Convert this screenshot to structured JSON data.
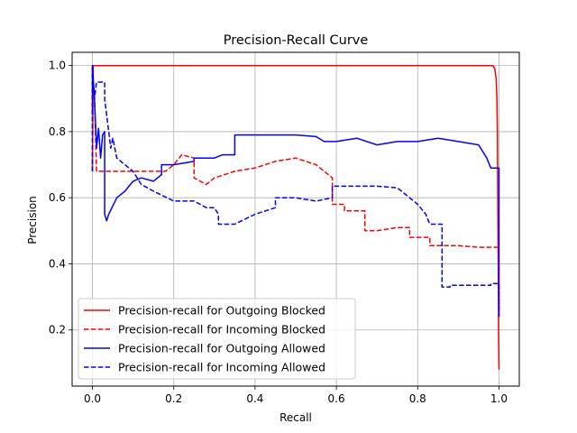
{
  "chart_data": {
    "type": "line",
    "title": "Precision-Recall Curve",
    "xlabel": "Recall",
    "ylabel": "Precision",
    "xlim": [
      -0.05,
      1.05
    ],
    "ylim": [
      0.03,
      1.04
    ],
    "xticks": [
      0.0,
      0.2,
      0.4,
      0.6,
      0.8,
      1.0
    ],
    "xtick_labels": [
      "0.0",
      "0.2",
      "0.4",
      "0.6",
      "0.8",
      "1.0"
    ],
    "yticks": [
      0.2,
      0.4,
      0.6,
      0.8,
      1.0
    ],
    "ytick_labels": [
      "0.2",
      "0.4",
      "0.6",
      "0.8",
      "1.0"
    ],
    "grid": true,
    "legend_position": "lower-left",
    "series": [
      {
        "name": "Precision-recall for Outgoing Blocked",
        "color": "#ff0000",
        "dash": "solid",
        "x": [
          0.0,
          0.002,
          0.01,
          0.5,
          0.97,
          0.985,
          0.99,
          0.993,
          0.995,
          0.996,
          0.997,
          0.998,
          0.999,
          1.0
        ],
        "y": [
          0.68,
          1.0,
          1.0,
          1.0,
          1.0,
          1.0,
          0.99,
          0.96,
          0.9,
          0.8,
          0.6,
          0.4,
          0.2,
          0.08
        ]
      },
      {
        "name": "Precision-recall for Incoming Blocked",
        "color": "#ff0000",
        "dash": "dashed",
        "x": [
          0.0,
          0.0,
          0.005,
          0.01,
          0.02,
          0.05,
          0.1,
          0.15,
          0.18,
          0.2,
          0.22,
          0.25,
          0.25,
          0.28,
          0.3,
          0.35,
          0.4,
          0.45,
          0.5,
          0.55,
          0.59,
          0.59,
          0.62,
          0.62,
          0.67,
          0.67,
          0.7,
          0.75,
          0.78,
          0.78,
          0.83,
          0.83,
          0.9,
          0.95,
          1.0
        ],
        "y": [
          0.68,
          1.0,
          0.9,
          0.68,
          0.68,
          0.68,
          0.68,
          0.68,
          0.68,
          0.7,
          0.73,
          0.72,
          0.66,
          0.64,
          0.66,
          0.68,
          0.69,
          0.71,
          0.72,
          0.7,
          0.66,
          0.58,
          0.58,
          0.56,
          0.56,
          0.5,
          0.5,
          0.51,
          0.51,
          0.48,
          0.48,
          0.455,
          0.455,
          0.45,
          0.45
        ]
      },
      {
        "name": "Precision-recall for Outgoing Allowed",
        "color": "#0000ff",
        "dash": "solid",
        "x": [
          0.0,
          0.0,
          0.005,
          0.01,
          0.015,
          0.02,
          0.025,
          0.03,
          0.03,
          0.035,
          0.04,
          0.06,
          0.08,
          0.1,
          0.12,
          0.15,
          0.17,
          0.17,
          0.2,
          0.25,
          0.25,
          0.3,
          0.32,
          0.35,
          0.35,
          0.4,
          0.45,
          0.5,
          0.55,
          0.57,
          0.6,
          0.65,
          0.7,
          0.75,
          0.8,
          0.85,
          0.9,
          0.95,
          0.97,
          0.98,
          0.99,
          1.0,
          1.0
        ],
        "y": [
          0.85,
          1.0,
          0.9,
          0.75,
          0.81,
          0.72,
          0.79,
          0.8,
          0.55,
          0.53,
          0.55,
          0.6,
          0.62,
          0.65,
          0.66,
          0.65,
          0.67,
          0.7,
          0.7,
          0.71,
          0.72,
          0.72,
          0.73,
          0.73,
          0.79,
          0.79,
          0.79,
          0.79,
          0.785,
          0.77,
          0.77,
          0.78,
          0.76,
          0.77,
          0.77,
          0.78,
          0.77,
          0.76,
          0.72,
          0.69,
          0.69,
          0.69,
          0.24
        ]
      },
      {
        "name": "Precision-recall for Incoming Allowed",
        "color": "#0000ff",
        "dash": "dashed",
        "x": [
          0.0,
          0.0,
          0.005,
          0.01,
          0.01,
          0.03,
          0.03,
          0.035,
          0.04,
          0.045,
          0.05,
          0.06,
          0.08,
          0.1,
          0.12,
          0.15,
          0.2,
          0.25,
          0.28,
          0.3,
          0.31,
          0.31,
          0.35,
          0.4,
          0.45,
          0.45,
          0.5,
          0.55,
          0.59,
          0.59,
          0.65,
          0.7,
          0.75,
          0.78,
          0.8,
          0.82,
          0.83,
          0.86,
          0.86,
          0.88,
          0.88,
          0.98,
          0.98,
          1.0,
          1.0
        ],
        "y": [
          0.68,
          1.0,
          0.9,
          0.95,
          0.95,
          0.95,
          0.9,
          0.85,
          0.8,
          0.75,
          0.78,
          0.72,
          0.7,
          0.68,
          0.64,
          0.62,
          0.59,
          0.59,
          0.57,
          0.57,
          0.55,
          0.52,
          0.52,
          0.55,
          0.57,
          0.6,
          0.6,
          0.59,
          0.6,
          0.635,
          0.635,
          0.635,
          0.63,
          0.6,
          0.58,
          0.55,
          0.52,
          0.52,
          0.33,
          0.33,
          0.335,
          0.335,
          0.34,
          0.34,
          0.24
        ]
      }
    ]
  }
}
